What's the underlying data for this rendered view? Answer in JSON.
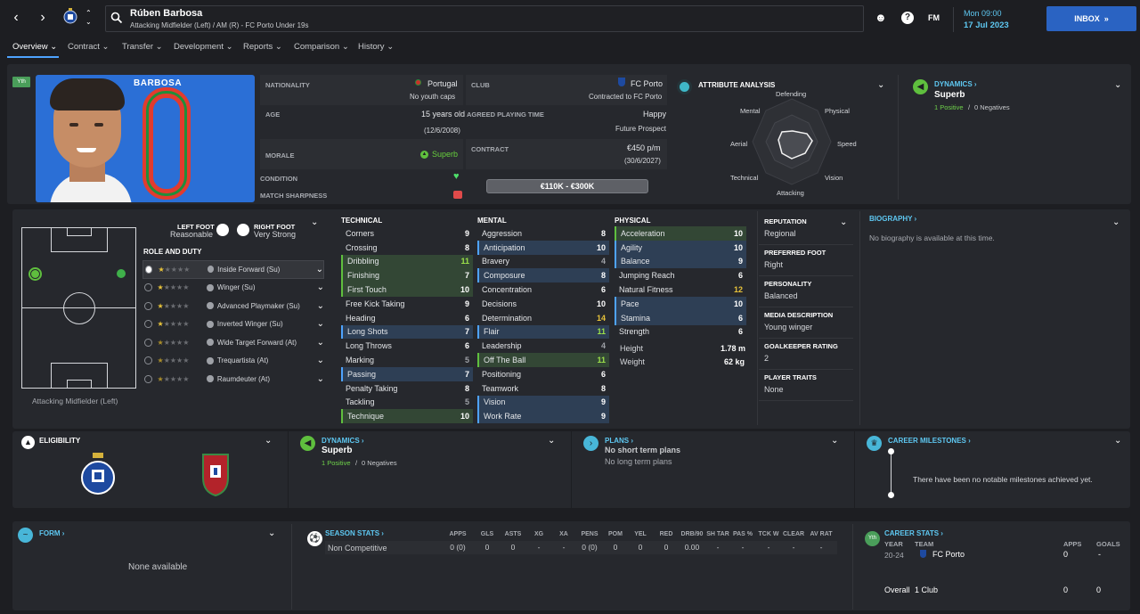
{
  "header": {
    "player_name": "Rúben Barbosa",
    "player_sub": "Attacking Midfielder (Left) / AM (R) - FC Porto Under 19s",
    "fm": "FM",
    "time": "Mon 09:00",
    "date": "17 Jul 2023",
    "inbox": "INBOX"
  },
  "tabs": [
    "Overview",
    "Contract",
    "Transfer",
    "Development",
    "Reports",
    "Comparison",
    "History"
  ],
  "profile": {
    "shirt_name": "BARBOSA",
    "shirt_number": "0",
    "badge": "Yth"
  },
  "info": {
    "nationality_label": "NATIONALITY",
    "nationality": "Portugal",
    "youth_caps": "No youth caps",
    "club_label": "CLUB",
    "club": "FC Porto",
    "contracted_to": "Contracted to FC Porto",
    "age_label": "AGE",
    "age": "15 years old",
    "dob": "(12/6/2008)",
    "playing_time_label": "AGREED PLAYING TIME",
    "playing_time": "Happy",
    "future": "Future Prospect",
    "morale_label": "MORALE",
    "morale": "Superb",
    "contract_label": "CONTRACT",
    "wage": "€450 p/m",
    "contract_end": "(30/6/2027)",
    "condition_label": "CONDITION",
    "sharpness_label": "MATCH SHARPNESS",
    "value": "€110K - €300K"
  },
  "attribute_analysis": {
    "title": "ATTRIBUTE ANALYSIS",
    "labels": [
      "Defending",
      "Physical",
      "Speed",
      "Vision",
      "Attacking",
      "Technical",
      "Aerial",
      "Mental"
    ]
  },
  "dynamics_top": {
    "title": "DYNAMICS",
    "value": "Superb",
    "positives": "1 Positive",
    "sep": "/",
    "negatives": "0 Negatives"
  },
  "position": {
    "left_foot_label": "LEFT FOOT",
    "left_foot": "Reasonable",
    "right_foot_label": "RIGHT FOOT",
    "right_foot": "Very Strong",
    "role_title": "ROLE AND DUTY",
    "position_name": "Attacking Midfielder (Left)"
  },
  "roles": [
    {
      "name": "Inside Forward (Su)",
      "stars": 1
    },
    {
      "name": "Winger (Su)",
      "stars": 1
    },
    {
      "name": "Advanced Playmaker (Su)",
      "stars": 1
    },
    {
      "name": "Inverted Winger (Su)",
      "stars": 1
    },
    {
      "name": "Wide Target Forward (At)",
      "stars": 0.5
    },
    {
      "name": "Trequartista (At)",
      "stars": 0.5
    },
    {
      "name": "Raumdeuter (At)",
      "stars": 0.5
    }
  ],
  "technical": {
    "title": "TECHNICAL",
    "rows": [
      {
        "n": "Corners",
        "v": "9",
        "h": ""
      },
      {
        "n": "Crossing",
        "v": "8",
        "h": ""
      },
      {
        "n": "Dribbling",
        "v": "11",
        "h": "g"
      },
      {
        "n": "Finishing",
        "v": "7",
        "h": "g"
      },
      {
        "n": "First Touch",
        "v": "10",
        "h": "g"
      },
      {
        "n": "Free Kick Taking",
        "v": "9",
        "h": ""
      },
      {
        "n": "Heading",
        "v": "6",
        "h": ""
      },
      {
        "n": "Long Shots",
        "v": "7",
        "h": "b"
      },
      {
        "n": "Long Throws",
        "v": "6",
        "h": ""
      },
      {
        "n": "Marking",
        "v": "5",
        "h": ""
      },
      {
        "n": "Passing",
        "v": "7",
        "h": "b"
      },
      {
        "n": "Penalty Taking",
        "v": "8",
        "h": ""
      },
      {
        "n": "Tackling",
        "v": "5",
        "h": ""
      },
      {
        "n": "Technique",
        "v": "10",
        "h": "g"
      }
    ]
  },
  "mental": {
    "title": "MENTAL",
    "rows": [
      {
        "n": "Aggression",
        "v": "8",
        "h": ""
      },
      {
        "n": "Anticipation",
        "v": "10",
        "h": "b"
      },
      {
        "n": "Bravery",
        "v": "4",
        "h": ""
      },
      {
        "n": "Composure",
        "v": "8",
        "h": "b"
      },
      {
        "n": "Concentration",
        "v": "6",
        "h": ""
      },
      {
        "n": "Decisions",
        "v": "10",
        "h": ""
      },
      {
        "n": "Determination",
        "v": "14",
        "h": ""
      },
      {
        "n": "Flair",
        "v": "11",
        "h": "b"
      },
      {
        "n": "Leadership",
        "v": "4",
        "h": ""
      },
      {
        "n": "Off The Ball",
        "v": "11",
        "h": "g"
      },
      {
        "n": "Positioning",
        "v": "6",
        "h": ""
      },
      {
        "n": "Teamwork",
        "v": "8",
        "h": ""
      },
      {
        "n": "Vision",
        "v": "9",
        "h": "b"
      },
      {
        "n": "Work Rate",
        "v": "9",
        "h": "b"
      }
    ]
  },
  "physical": {
    "title": "PHYSICAL",
    "rows": [
      {
        "n": "Acceleration",
        "v": "10",
        "h": "g"
      },
      {
        "n": "Agility",
        "v": "10",
        "h": "b"
      },
      {
        "n": "Balance",
        "v": "9",
        "h": "b"
      },
      {
        "n": "Jumping Reach",
        "v": "6",
        "h": ""
      },
      {
        "n": "Natural Fitness",
        "v": "12",
        "h": ""
      },
      {
        "n": "Pace",
        "v": "10",
        "h": "b"
      },
      {
        "n": "Stamina",
        "v": "6",
        "h": "b"
      },
      {
        "n": "Strength",
        "v": "6",
        "h": ""
      }
    ],
    "height_label": "Height",
    "height": "1.78 m",
    "weight_label": "Weight",
    "weight": "62 kg"
  },
  "details": [
    {
      "label": "REPUTATION",
      "value": "Regional"
    },
    {
      "label": "PREFERRED FOOT",
      "value": "Right"
    },
    {
      "label": "PERSONALITY",
      "value": "Balanced"
    },
    {
      "label": "MEDIA DESCRIPTION",
      "value": "Young winger"
    },
    {
      "label": "GOALKEEPER RATING",
      "value": "2"
    },
    {
      "label": "PLAYER TRAITS",
      "value": "None"
    }
  ],
  "biography": {
    "title": "BIOGRAPHY",
    "text": "No biography is available at this time."
  },
  "eligibility": {
    "title": "ELIGIBILITY"
  },
  "dynamics_mid": {
    "title": "DYNAMICS",
    "value": "Superb",
    "positives": "1 Positive",
    "sep": "/",
    "negatives": "0 Negatives"
  },
  "plans": {
    "title": "PLANS",
    "short": "No short term plans",
    "long": "No long term plans"
  },
  "milestones": {
    "title": "CAREER MILESTONES",
    "text": "There have been no notable milestones achieved yet."
  },
  "form": {
    "title": "FORM",
    "text": "None available"
  },
  "season_stats": {
    "title": "SEASON STATS",
    "headers": [
      "APPS",
      "GLS",
      "ASTS",
      "XG",
      "XA",
      "PENS",
      "POM",
      "YEL",
      "RED",
      "DRB/90",
      "SH TAR",
      "PAS %",
      "TCK W",
      "CLEAR",
      "AV RAT"
    ],
    "row_label": "Non Competitive",
    "values": [
      "0 (0)",
      "0",
      "0",
      "-",
      "-",
      "0 (0)",
      "0",
      "0",
      "0",
      "0.00",
      "-",
      "-",
      "-",
      "-",
      "-"
    ]
  },
  "career_stats": {
    "title": "CAREER STATS",
    "badge": "Yth",
    "year_label": "YEAR",
    "team_label": "TEAM",
    "apps_label": "APPS",
    "goals_label": "GOALS",
    "year": "20-24",
    "team": "FC Porto",
    "apps": "0",
    "goals": "-",
    "overall_label": "Overall",
    "overall_clubs": "1 Club",
    "overall_apps": "0",
    "overall_goals": "0"
  }
}
